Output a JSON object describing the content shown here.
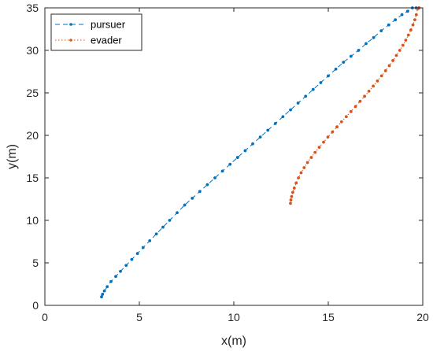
{
  "chart_data": {
    "type": "line",
    "title": "",
    "xlabel": "x(m)",
    "ylabel": "y(m)",
    "xlim": [
      0,
      20
    ],
    "ylim": [
      0,
      35
    ],
    "xticks": [
      0,
      5,
      10,
      15,
      20
    ],
    "yticks": [
      0,
      5,
      10,
      15,
      20,
      25,
      30,
      35
    ],
    "grid": false,
    "legend_position": "top-left",
    "series": [
      {
        "name": "pursuer",
        "color": "#0072BD",
        "line_style": "dashed",
        "marker": "dot",
        "x": [
          3.0,
          3.05,
          3.15,
          3.3,
          3.5,
          3.75,
          4.0,
          4.3,
          4.6,
          4.9,
          5.2,
          5.55,
          5.9,
          6.25,
          6.6,
          7.0,
          7.4,
          7.8,
          8.2,
          8.6,
          9.0,
          9.4,
          9.8,
          10.2,
          10.6,
          11.0,
          11.4,
          11.8,
          12.2,
          12.6,
          13.0,
          13.4,
          13.8,
          14.2,
          14.6,
          15.0,
          15.4,
          15.8,
          16.2,
          16.6,
          17.0,
          17.4,
          17.8,
          18.2,
          18.55,
          18.9,
          19.2,
          19.45,
          19.65,
          19.8
        ],
        "y": [
          1.0,
          1.3,
          1.7,
          2.2,
          2.8,
          3.4,
          4.0,
          4.7,
          5.4,
          6.1,
          6.8,
          7.6,
          8.4,
          9.2,
          10.0,
          10.9,
          11.8,
          12.6,
          13.4,
          14.2,
          15.0,
          15.8,
          16.6,
          17.4,
          18.2,
          19.0,
          19.8,
          20.6,
          21.4,
          22.2,
          23.0,
          23.8,
          24.6,
          25.4,
          26.2,
          27.0,
          27.8,
          28.6,
          29.3,
          30.0,
          30.8,
          31.5,
          32.3,
          33.0,
          33.6,
          34.2,
          34.6,
          35.0,
          35.4,
          35.7
        ]
      },
      {
        "name": "evader",
        "color": "#D95319",
        "line_style": "dotted",
        "marker": "dot",
        "x": [
          13.0,
          13.02,
          13.06,
          13.12,
          13.2,
          13.3,
          13.42,
          13.56,
          13.72,
          13.9,
          14.1,
          14.3,
          14.52,
          14.75,
          14.98,
          15.22,
          15.46,
          15.7,
          15.95,
          16.2,
          16.44,
          16.68,
          16.92,
          17.15,
          17.38,
          17.6,
          17.82,
          18.03,
          18.23,
          18.42,
          18.6,
          18.78,
          18.95,
          19.1,
          19.24,
          19.37,
          19.48,
          19.58,
          19.66,
          19.73,
          19.8
        ],
        "y": [
          12.0,
          12.4,
          12.8,
          13.3,
          13.8,
          14.4,
          15.0,
          15.6,
          16.2,
          16.8,
          17.4,
          18.0,
          18.6,
          19.2,
          19.8,
          20.4,
          21.0,
          21.6,
          22.2,
          22.8,
          23.4,
          24.0,
          24.6,
          25.2,
          25.8,
          26.4,
          27.0,
          27.6,
          28.2,
          28.8,
          29.4,
          30.0,
          30.6,
          31.2,
          31.8,
          32.4,
          33.0,
          33.6,
          34.2,
          34.9,
          35.5
        ]
      }
    ]
  }
}
